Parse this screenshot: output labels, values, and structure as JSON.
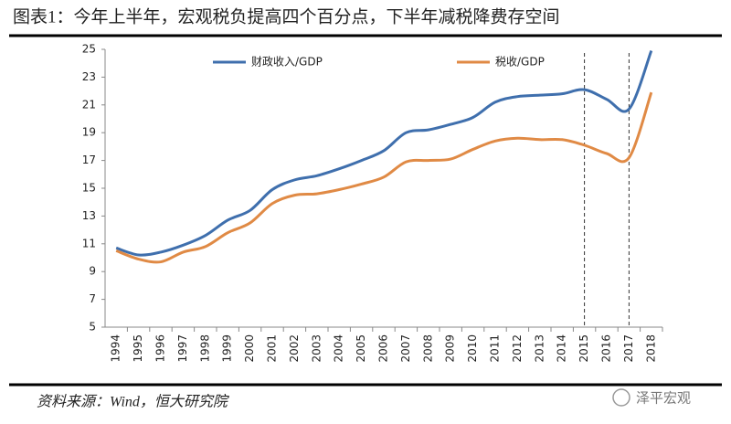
{
  "chart_data": {
    "type": "line",
    "title": "图表1：今年上半年，宏观税负提高四个百分点，下半年减税降费存空间",
    "categories": [
      "1994",
      "1995",
      "1996",
      "1997",
      "1998",
      "1999",
      "2000",
      "2001",
      "2002",
      "2003",
      "2004",
      "2005",
      "2006",
      "2007",
      "2008",
      "2009",
      "2010",
      "2011",
      "2012",
      "2013",
      "2014",
      "2015",
      "2016",
      "2017",
      "2018"
    ],
    "series": [
      {
        "name": "财政收入/GDP",
        "color": "#3f6fad",
        "values": [
          10.7,
          10.2,
          10.4,
          10.9,
          11.6,
          12.7,
          13.4,
          14.9,
          15.6,
          15.9,
          16.4,
          17.0,
          17.7,
          19.0,
          19.2,
          19.6,
          20.1,
          21.2,
          21.6,
          21.7,
          21.8,
          22.1,
          21.4,
          20.7,
          24.9
        ]
      },
      {
        "name": "税收/GDP",
        "color": "#e08a45",
        "values": [
          10.5,
          9.9,
          9.7,
          10.4,
          10.8,
          11.8,
          12.5,
          13.9,
          14.5,
          14.6,
          14.9,
          15.3,
          15.8,
          16.9,
          17.0,
          17.1,
          17.8,
          18.4,
          18.6,
          18.5,
          18.5,
          18.1,
          17.5,
          17.2,
          21.9
        ]
      }
    ],
    "ylim": [
      5,
      25
    ],
    "yticks": [
      5,
      7,
      9,
      11,
      13,
      15,
      17,
      19,
      21,
      23,
      25
    ],
    "source": "资料来源：Wind，恒大研究院",
    "watermark": "泽平宏观"
  }
}
